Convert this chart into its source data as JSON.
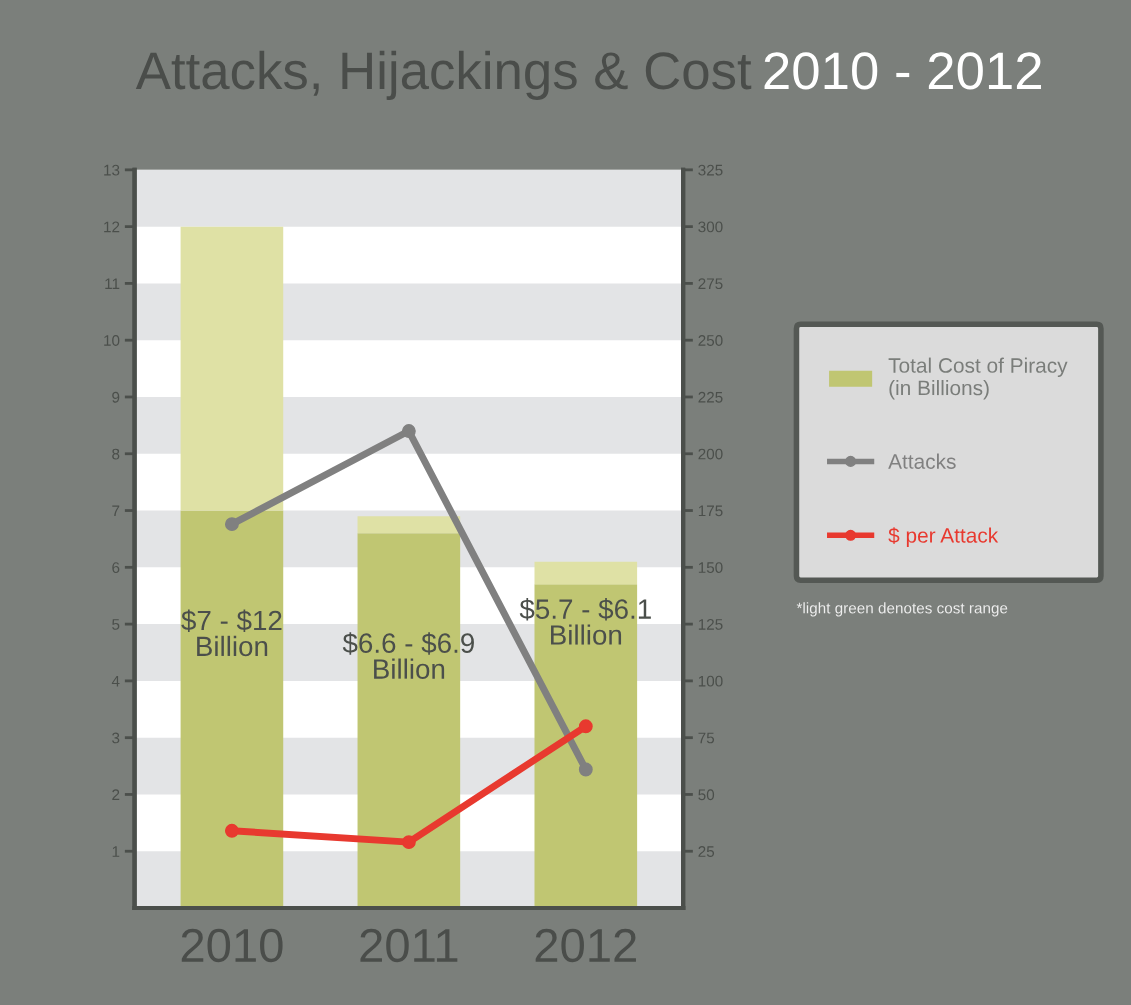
{
  "chart_data": {
    "type": "bar",
    "title": "Attacks, Hijackings & Cost",
    "subtitle": "2010 - 2012",
    "categories": [
      "2010",
      "2011",
      "2012"
    ],
    "stacked": true,
    "series": [
      {
        "name": "Total Cost of Piracy\n(in Billions)",
        "color": "#c0c672",
        "values": [
          7,
          6.6,
          5.7
        ],
        "value_labels": [
          "$7 - $12\nBillion",
          "$6.6 - $6.9\nBillion",
          "$5.7 - $6.1\nBillion"
        ]
      },
      {
        "color": "#dfe1a5",
        "values": [
          5,
          0.3,
          0.4
        ]
      },
      {
        "name": "Attacks",
        "type": "line",
        "axis": "y2",
        "color": "#808080",
        "values": [
          169,
          210,
          61
        ]
      },
      {
        "name": "$ per Attack",
        "type": "line",
        "axis": "y2",
        "color": "#e8392f",
        "values": [
          34,
          29,
          80
        ]
      }
    ],
    "ylim": [
      0,
      13
    ],
    "yticks": [
      1,
      2,
      3,
      4,
      5,
      6,
      7,
      8,
      9,
      10,
      11,
      12,
      13
    ],
    "y2lim": [
      0,
      325
    ],
    "y2ticks": [
      25,
      50,
      75,
      100,
      125,
      150,
      175,
      200,
      225,
      250,
      275,
      300,
      325
    ],
    "annotations": [
      "*light green denotes cost range"
    ],
    "grid": false,
    "legend": "right",
    "marker": "circle",
    "line_style": "solid"
  }
}
